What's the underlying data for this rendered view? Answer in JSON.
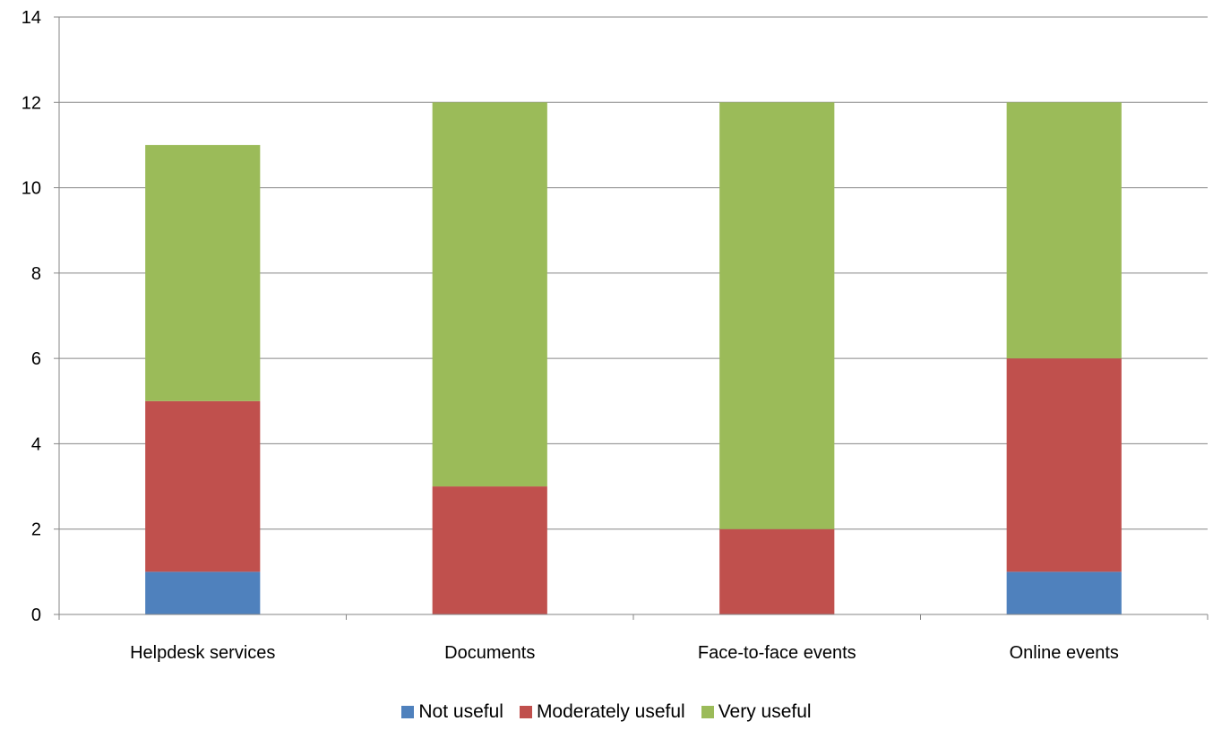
{
  "chart_data": {
    "type": "bar",
    "stacked": true,
    "categories": [
      "Helpdesk services",
      "Documents",
      "Face-to-face events",
      "Online events"
    ],
    "series": [
      {
        "name": "Not useful",
        "values": [
          1,
          0,
          0,
          1
        ],
        "color": "#4f81bd"
      },
      {
        "name": "Moderately useful",
        "values": [
          4,
          3,
          2,
          5
        ],
        "color": "#c0504d"
      },
      {
        "name": "Very useful",
        "values": [
          6,
          9,
          10,
          6
        ],
        "color": "#9bbb59"
      }
    ],
    "ylim": [
      0,
      14
    ],
    "yticks": [
      0,
      2,
      4,
      6,
      8,
      10,
      12,
      14
    ],
    "grid": true,
    "legend": "bottom",
    "title": "",
    "xlabel": "",
    "ylabel": ""
  }
}
